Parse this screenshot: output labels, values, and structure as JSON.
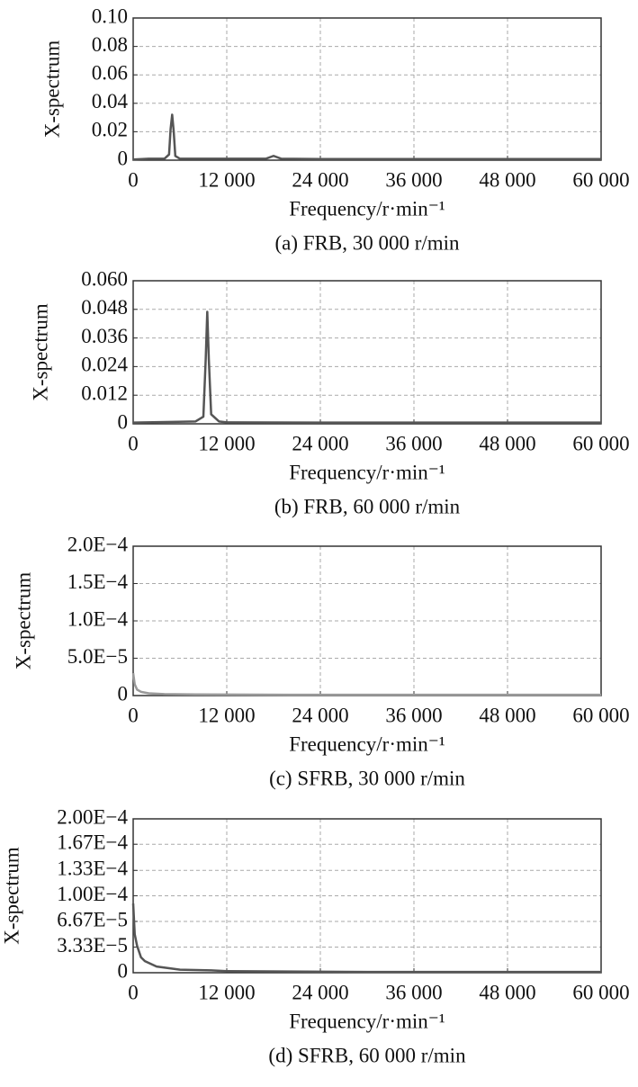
{
  "chart_data": [
    {
      "type": "line",
      "caption": "(a) FRB, 30 000 r/min",
      "x_label": "Frequency/r·min⁻¹",
      "y_label": "X-spectrum",
      "grid": true,
      "color": "#555555",
      "x": [
        0,
        2000,
        4000,
        4600,
        4800,
        5000,
        5200,
        5400,
        6000,
        10000,
        17000,
        18000,
        19000,
        24000,
        36000,
        48000,
        60000
      ],
      "values": [
        0.0005,
        0.001,
        0.001,
        0.004,
        0.022,
        0.032,
        0.02,
        0.003,
        0.001,
        0.001,
        0.001,
        0.003,
        0.001,
        0.0008,
        0.0008,
        0.0008,
        0.0008
      ],
      "xlim": [
        0,
        60000
      ],
      "xticks": [
        0,
        {
          "value": 12000,
          "label": "12 000"
        },
        {
          "value": 24000,
          "label": "24 000"
        },
        {
          "value": 36000,
          "label": "36 000"
        },
        {
          "value": 48000,
          "label": "48 000"
        },
        {
          "value": 60000,
          "label": "60 000"
        }
      ],
      "ylim": [
        0,
        0.1
      ],
      "yticks": [
        0,
        0.02,
        0.04,
        0.06,
        0.08,
        {
          "value": 0.1,
          "label": "0.10"
        }
      ]
    },
    {
      "type": "line",
      "caption": "(b) FRB, 60 000 r/min",
      "x_label": "Frequency/r·min⁻¹",
      "y_label": "X-spectrum",
      "grid": true,
      "color": "#555555",
      "x": [
        0,
        5000,
        8000,
        9000,
        9300,
        9500,
        9700,
        10000,
        11000,
        12000,
        24000,
        60000
      ],
      "values": [
        0.0005,
        0.0008,
        0.001,
        0.003,
        0.027,
        0.047,
        0.027,
        0.004,
        0.001,
        0.0006,
        0.0005,
        0.0005
      ],
      "xlim": [
        0,
        60000
      ],
      "xticks": [
        0,
        {
          "value": 12000,
          "label": "12 000"
        },
        {
          "value": 24000,
          "label": "24 000"
        },
        {
          "value": 36000,
          "label": "36 000"
        },
        {
          "value": 48000,
          "label": "48 000"
        },
        {
          "value": 60000,
          "label": "60 000"
        }
      ],
      "ylim": [
        0,
        0.06
      ],
      "yticks": [
        0,
        0.012,
        0.024,
        0.036,
        0.048,
        {
          "value": 0.06,
          "label": "0.060"
        }
      ]
    },
    {
      "type": "line",
      "caption": "(c) SFRB, 30 000 r/min",
      "x_label": "Frequency/r·min⁻¹",
      "y_label": "X-spectrum",
      "grid": true,
      "color": "#999999",
      "x": [
        0,
        200,
        500,
        1000,
        2000,
        4000,
        8000,
        20000,
        40000,
        60000
      ],
      "values": [
        3e-05,
        1.5e-05,
        8e-06,
        5e-06,
        3e-06,
        2e-06,
        1.5e-06,
        1e-06,
        1e-06,
        1e-06
      ],
      "xlim": [
        0,
        60000
      ],
      "xticks": [
        0,
        {
          "value": 12000,
          "label": "12 000"
        },
        {
          "value": 24000,
          "label": "24 000"
        },
        {
          "value": 36000,
          "label": "36 000"
        },
        {
          "value": 48000,
          "label": "48 000"
        },
        {
          "value": 60000,
          "label": "60 000"
        }
      ],
      "ylim": [
        0,
        0.0002
      ],
      "yticks": [
        0,
        {
          "value": 5e-05,
          "label": "5.0E−5"
        },
        {
          "value": 0.0001,
          "label": "1.0E−4"
        },
        {
          "value": 0.00015,
          "label": "1.5E−4"
        },
        {
          "value": 0.0002,
          "label": "2.0E−4"
        }
      ]
    },
    {
      "type": "line",
      "caption": "(d) SFRB, 60 000 r/min",
      "x_label": "Frequency/r·min⁻¹",
      "y_label": "X-spectrum",
      "grid": true,
      "color": "#555555",
      "x": [
        0,
        200,
        500,
        1000,
        1500,
        3000,
        6000,
        10000,
        12000,
        30000,
        60000
      ],
      "values": [
        9e-05,
        5e-05,
        3.5e-05,
        2e-05,
        1.5e-05,
        8e-06,
        4e-06,
        3e-06,
        2e-06,
        1e-06,
        1e-06
      ],
      "xlim": [
        0,
        60000
      ],
      "xticks": [
        0,
        {
          "value": 12000,
          "label": "12 000"
        },
        {
          "value": 24000,
          "label": "24 000"
        },
        {
          "value": 36000,
          "label": "36 000"
        },
        {
          "value": 48000,
          "label": "48 000"
        },
        {
          "value": 60000,
          "label": "60 000"
        }
      ],
      "ylim": [
        0,
        0.0002
      ],
      "yticks": [
        0,
        {
          "value": 3.33e-05,
          "label": "3.33E−5"
        },
        {
          "value": 6.67e-05,
          "label": "6.67E−5"
        },
        {
          "value": 0.0001,
          "label": "1.00E−4"
        },
        {
          "value": 0.000133,
          "label": "1.33E−4"
        },
        {
          "value": 0.000167,
          "label": "1.67E−4"
        },
        {
          "value": 0.0002,
          "label": "2.00E−4"
        }
      ]
    }
  ]
}
